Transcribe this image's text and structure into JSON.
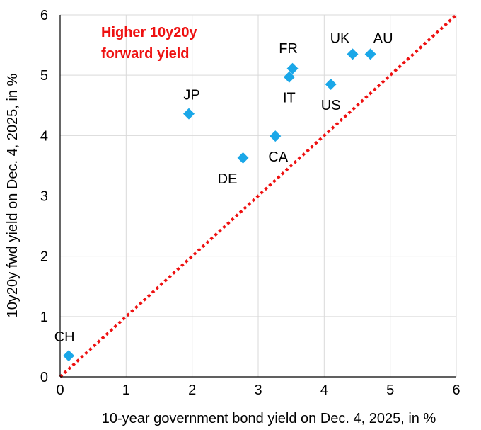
{
  "chart_data": {
    "type": "scatter",
    "xlabel": "10-year government bond yield on Dec. 4, 2025, in %",
    "ylabel": "10y20y fwd yield on Dec. 4, 2025, in %",
    "xlim": [
      0,
      6
    ],
    "ylim": [
      0,
      6
    ],
    "x_ticks": [
      "0",
      "1",
      "2",
      "3",
      "4",
      "5",
      "6"
    ],
    "y_ticks": [
      "0",
      "1",
      "2",
      "3",
      "4",
      "5",
      "6"
    ],
    "grid": true,
    "points": [
      {
        "label": "CH",
        "x": 0.13,
        "y": 0.35
      },
      {
        "label": "JP",
        "x": 1.95,
        "y": 4.36
      },
      {
        "label": "DE",
        "x": 2.77,
        "y": 3.63
      },
      {
        "label": "CA",
        "x": 3.26,
        "y": 3.99
      },
      {
        "label": "IT",
        "x": 3.47,
        "y": 4.97
      },
      {
        "label": "FR",
        "x": 3.52,
        "y": 5.11
      },
      {
        "label": "US",
        "x": 4.1,
        "y": 4.85
      },
      {
        "label": "UK",
        "x": 4.43,
        "y": 5.35
      },
      {
        "label": "AU",
        "x": 4.7,
        "y": 5.35
      }
    ],
    "reference_line": {
      "from": [
        0,
        0
      ],
      "to": [
        6,
        6
      ],
      "style": "dotted"
    },
    "annotation": [
      "Higher 10y20y",
      "forward yield"
    ],
    "colors": {
      "marker": "#1aa7e8",
      "reference_line": "#ee1111",
      "annotation": "#ee1111",
      "grid": "#d9d9d9",
      "axis": "#000000"
    }
  }
}
